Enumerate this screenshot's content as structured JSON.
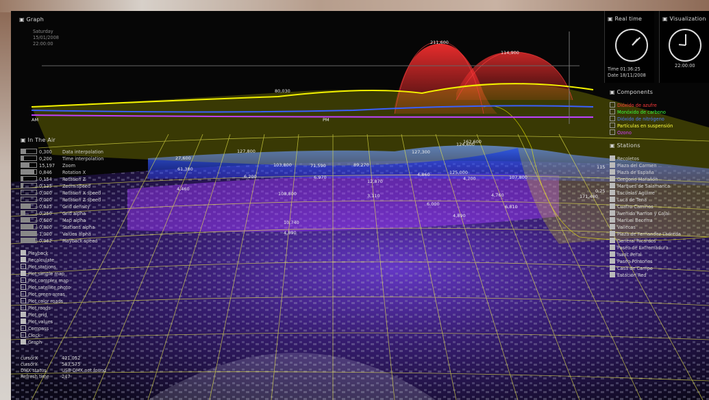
{
  "graph": {
    "title": "Graph",
    "date_line1": "Saturday",
    "date_line2": "15/01/2008",
    "time": "22:00:00",
    "label_am": "AM",
    "label_pm": "PM",
    "peak_values": [
      "211,600",
      "114,900",
      "80,030"
    ]
  },
  "realtime": {
    "title": "Real time",
    "time_label": "Time 01:36:25",
    "date_label": "Date 18/11/2008"
  },
  "visualization": {
    "title": "Visualization",
    "time": "22:00:00"
  },
  "components": {
    "title": "Components",
    "items": [
      {
        "label": "Dióxido de azufre",
        "color": "#ff3a3a"
      },
      {
        "label": "Monóxido de carbono",
        "color": "#3dff3d"
      },
      {
        "label": "Dióxido de nitrógeno",
        "color": "#4a7dff"
      },
      {
        "label": "Partículas en suspensión",
        "color": "#ffff3a"
      },
      {
        "label": "Ozono",
        "color": "#d33bff"
      }
    ]
  },
  "stations": {
    "title": "Stations",
    "items": [
      "Recoletos",
      "Plaza del Carmen",
      "Plaza de España",
      "Gregorio Marañón",
      "Marques de Salamanca",
      "Escuelas Aguirre",
      "Luca de Tena",
      "Cuatro Caminos",
      "Avenida Ramon y Cajal",
      "Manuel Becerra",
      "Vallecas",
      "Plaza de Fernandez Ladreda",
      "General Ricardos",
      "Paseo de Extremadura",
      "Isaac Peral",
      "Paseo Pontones",
      "Casa de Campo",
      "Estación Red"
    ]
  },
  "in_the_air": {
    "title": "In The Air",
    "sliders": [
      {
        "value": "0,300",
        "label": "Data interpolation",
        "fill": 0.3
      },
      {
        "value": "0,200",
        "label": "Time interpolation",
        "fill": 0.2
      },
      {
        "value": "15,197",
        "label": "Zoom",
        "fill": 0.55
      },
      {
        "value": "0,846",
        "label": "Rotation X",
        "fill": 0.85
      },
      {
        "value": "0,154",
        "label": "Rotation Z",
        "fill": 0.15
      },
      {
        "value": "0,135",
        "label": "Zoom speed",
        "fill": 0.13
      },
      {
        "value": "0,000",
        "label": "Rotation X speed",
        "fill": 0.0
      },
      {
        "value": "0,000",
        "label": "Rotation Z speed",
        "fill": 0.0
      },
      {
        "value": "0,635",
        "label": "Grid density",
        "fill": 0.63
      },
      {
        "value": "0,250",
        "label": "Grid alpha",
        "fill": 0.25
      },
      {
        "value": "0,600",
        "label": "Map alpha",
        "fill": 0.6
      },
      {
        "value": "0,800",
        "label": "Stations alpha",
        "fill": 0.8
      },
      {
        "value": "1,000",
        "label": "Values alpha",
        "fill": 1.0
      },
      {
        "value": "0,962",
        "label": "Playback speed",
        "fill": 0.96
      }
    ],
    "toggles": [
      {
        "label": "Playback",
        "on": true
      },
      {
        "label": "Recalculate",
        "on": true
      },
      {
        "label": "Plot stations",
        "on": false
      },
      {
        "label": "Plot simple map",
        "on": true
      },
      {
        "label": "Plot complex map",
        "on": false
      },
      {
        "label": "Plot satellite photo",
        "on": false
      },
      {
        "label": "Plot green areas",
        "on": false
      },
      {
        "label": "Plot color roads",
        "on": false
      },
      {
        "label": "Plot roads",
        "on": false
      },
      {
        "label": "Plot grid",
        "on": true
      },
      {
        "label": "Plot values",
        "on": true
      },
      {
        "label": "Compass",
        "on": false
      },
      {
        "label": "Clock",
        "on": false
      },
      {
        "label": "Graph",
        "on": true
      }
    ],
    "status": [
      {
        "key": "cursorX",
        "value": "421,052"
      },
      {
        "key": "cursorY",
        "value": "583,575"
      },
      {
        "key": "DMX status",
        "value": "USB-DMX not found"
      },
      {
        "key": "Refresh time",
        "value": "247"
      }
    ]
  },
  "scene_values": [
    "127,800",
    "127,300",
    "103,800",
    "71,590",
    "89,270",
    "124,600",
    "162,600",
    "27,600",
    "61,380",
    "6,200",
    "6,970",
    "12,870",
    "4,860",
    "125,000",
    "4,700",
    "107,800",
    "4,460",
    "108,800",
    "3,110",
    "6,000",
    "4,760",
    "171,480",
    "6,810",
    "4,890",
    "10,740",
    "4,890",
    "115",
    "0,25"
  ]
}
